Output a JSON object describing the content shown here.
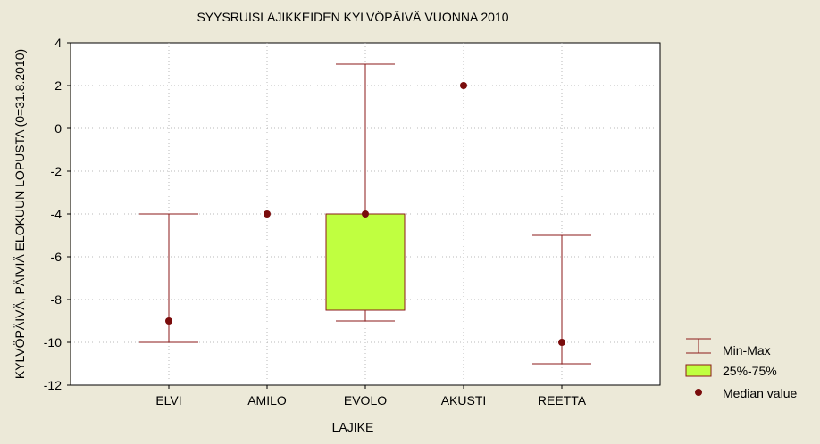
{
  "chart_data": {
    "type": "boxplot",
    "title": "SYYSRUISLAJIKKEIDEN KYLVÖPÄIVÄ VUONNA 2010",
    "xlabel": "LAJIKE",
    "ylabel": "KYLVÖPÄIVÄ, PÄIVIÄ ELOKUUN LOPUSTA (0=31.8.2010)",
    "ylim": [
      -12,
      4
    ],
    "yticks": [
      4,
      2,
      0,
      -2,
      -4,
      -6,
      -8,
      -10,
      -12
    ],
    "grid": true,
    "legend_position": "right",
    "categories": [
      "ELVI",
      "AMILO",
      "EVOLO",
      "AKUSTI",
      "REETTA"
    ],
    "boxes": [
      {
        "min": -10,
        "q1": null,
        "median": -9,
        "q3": null,
        "max": -4
      },
      {
        "min": -4,
        "q1": null,
        "median": -4,
        "q3": null,
        "max": -4
      },
      {
        "min": -9,
        "q1": -8.5,
        "median": -4,
        "q3": -4,
        "max": 3
      },
      {
        "min": 2,
        "q1": null,
        "median": 2,
        "q3": null,
        "max": 2
      },
      {
        "min": -11,
        "q1": null,
        "median": -10,
        "q3": null,
        "max": -5
      }
    ],
    "legend": {
      "minmax": "Min-Max",
      "box": "25%-75%",
      "median": "Median value"
    },
    "colors": {
      "whisker": "#8b1a1a",
      "box_fill": "#c0ff40",
      "median": "#7a0c0c",
      "plot_bg": "#ffffff",
      "background": "#ece9d8"
    }
  }
}
